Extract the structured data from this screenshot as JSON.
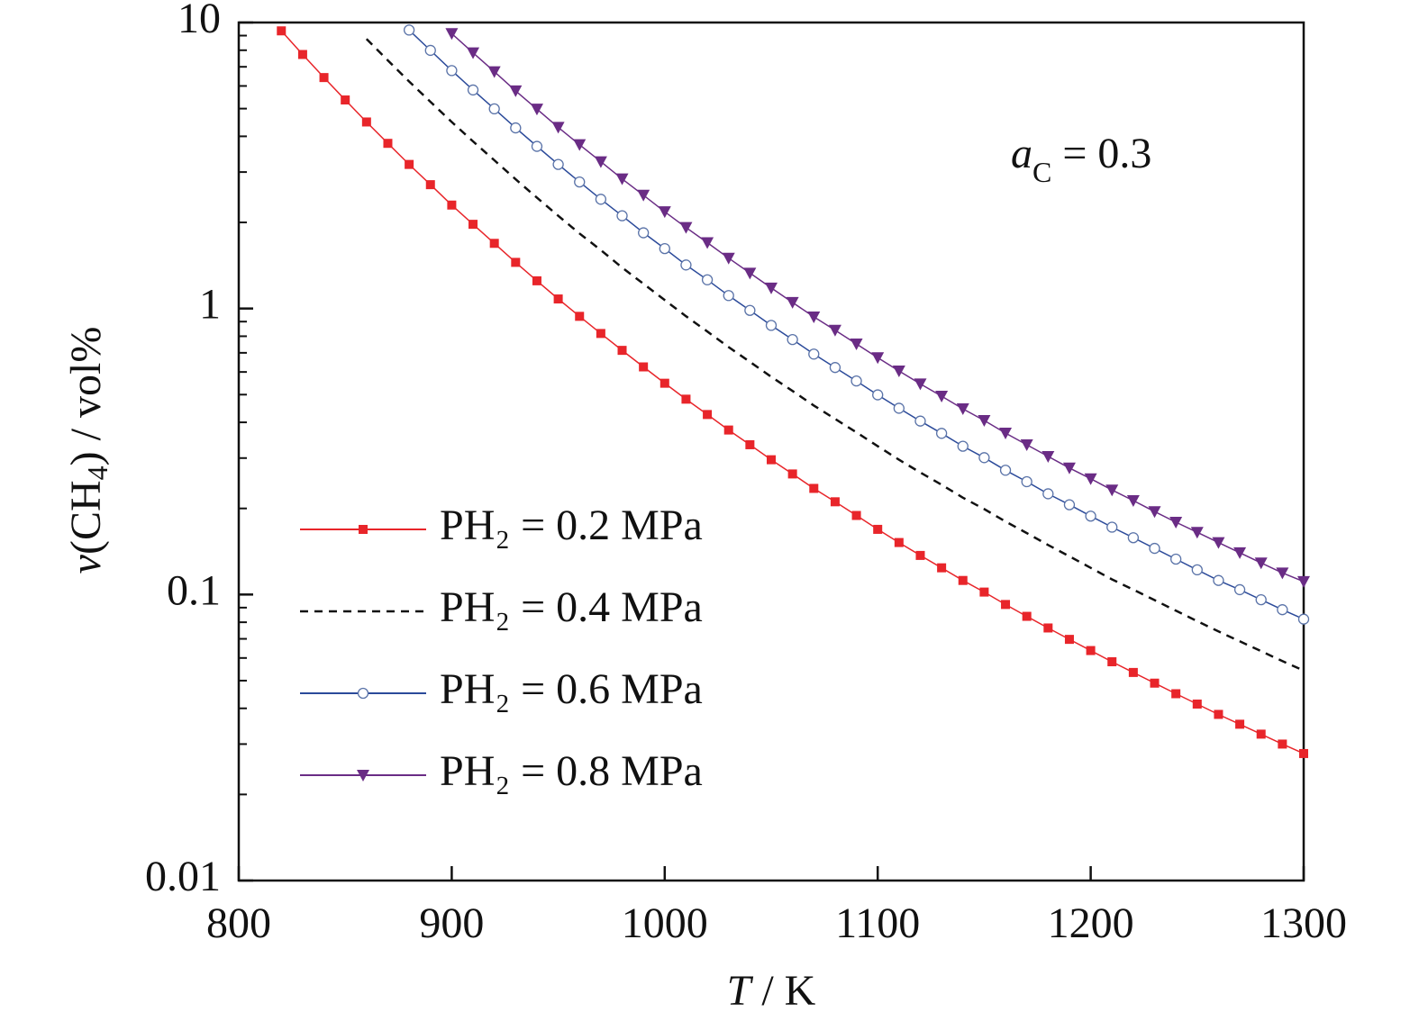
{
  "chart_data": {
    "type": "line",
    "xlabel": [
      "T",
      " / K"
    ],
    "ylabel": [
      "v",
      "(CH",
      "4",
      ") / vol%"
    ],
    "annotation": [
      "a",
      "C",
      " = 0.3"
    ],
    "log_y": true,
    "legend": "left",
    "xlim": [
      800,
      1300
    ],
    "xticks": [
      800,
      900,
      1000,
      1100,
      1200,
      1300
    ],
    "ylim": [
      0.01,
      10
    ],
    "yticks": [
      0.01,
      0.1,
      1,
      10
    ],
    "yminorticks": [
      0.02,
      0.03,
      0.04,
      0.05,
      0.06,
      0.07,
      0.08,
      0.09,
      0.2,
      0.3,
      0.4,
      0.5,
      0.6,
      0.7,
      0.8,
      0.9,
      2,
      3,
      4,
      5,
      6,
      7,
      8,
      9
    ],
    "x": [
      800,
      810,
      820,
      830,
      840,
      850,
      860,
      870,
      880,
      890,
      900,
      910,
      920,
      930,
      940,
      950,
      960,
      970,
      980,
      990,
      1000,
      1010,
      1020,
      1030,
      1040,
      1050,
      1060,
      1070,
      1080,
      1090,
      1100,
      1110,
      1120,
      1130,
      1140,
      1150,
      1160,
      1170,
      1180,
      1190,
      1200,
      1210,
      1220,
      1230,
      1240,
      1250,
      1260,
      1270,
      1280,
      1290,
      1300
    ],
    "series": [
      {
        "name": "PH₂ = 0.2 MPa",
        "color": "#e8252a",
        "marker": "square",
        "dashed": false,
        "values": [
          null,
          null,
          9.35,
          7.73,
          6.42,
          5.36,
          4.49,
          3.78,
          3.19,
          2.71,
          2.3,
          1.97,
          1.69,
          1.45,
          1.25,
          1.08,
          0.939,
          0.818,
          0.714,
          0.625,
          0.548,
          0.482,
          0.426,
          0.376,
          0.334,
          0.296,
          0.264,
          0.235,
          0.211,
          0.189,
          0.169,
          0.152,
          0.137,
          0.124,
          0.112,
          0.102,
          0.0923,
          0.0839,
          0.0764,
          0.0697,
          0.0637,
          0.0582,
          0.0534,
          0.049,
          0.045,
          0.0414,
          0.0381,
          0.0352,
          0.0325,
          0.03,
          0.0278
        ]
      },
      {
        "name": "PH₂ = 0.4 MPa",
        "color": "#111111",
        "marker": "none",
        "dashed": true,
        "values": [
          null,
          null,
          null,
          null,
          null,
          null,
          8.76,
          7.37,
          6.22,
          5.28,
          4.49,
          3.84,
          3.3,
          2.83,
          2.44,
          2.11,
          1.83,
          1.6,
          1.39,
          1.22,
          1.07,
          0.94,
          0.831,
          0.733,
          0.651,
          0.577,
          0.515,
          0.458,
          0.411,
          0.369,
          0.33,
          0.296,
          0.267,
          0.242,
          0.218,
          0.199,
          0.18,
          0.164,
          0.149,
          0.136,
          0.124,
          0.113,
          0.104,
          0.0956,
          0.0878,
          0.0807,
          0.0743,
          0.0686,
          0.0634,
          0.0585,
          0.0542
        ]
      },
      {
        "name": "PH₂ = 0.6 MPa",
        "color": "#2b4a9a",
        "marker": "circle",
        "dashed": false,
        "values": [
          null,
          null,
          null,
          null,
          null,
          null,
          null,
          null,
          9.41,
          7.99,
          6.79,
          5.81,
          4.99,
          4.28,
          3.69,
          3.19,
          2.77,
          2.41,
          2.11,
          1.84,
          1.62,
          1.42,
          1.26,
          1.11,
          0.985,
          0.873,
          0.779,
          0.693,
          0.622,
          0.558,
          0.499,
          0.448,
          0.404,
          0.366,
          0.33,
          0.301,
          0.272,
          0.248,
          0.225,
          0.206,
          0.188,
          0.172,
          0.158,
          0.145,
          0.133,
          0.122,
          0.112,
          0.104,
          0.0959,
          0.0885,
          0.082
        ]
      },
      {
        "name": "PH₂ = 0.8 MPa",
        "color": "#6a2c85",
        "marker": "triangle-down",
        "dashed": false,
        "values": [
          null,
          null,
          null,
          null,
          null,
          null,
          null,
          null,
          null,
          null,
          9.15,
          7.84,
          6.73,
          5.77,
          4.98,
          4.3,
          3.74,
          3.26,
          2.84,
          2.49,
          2.18,
          1.92,
          1.7,
          1.5,
          1.33,
          1.18,
          1.05,
          0.935,
          0.84,
          0.752,
          0.673,
          0.605,
          0.545,
          0.494,
          0.446,
          0.406,
          0.367,
          0.334,
          0.304,
          0.277,
          0.254,
          0.232,
          0.213,
          0.195,
          0.179,
          0.165,
          0.152,
          0.14,
          0.129,
          0.119,
          0.111
        ]
      }
    ]
  }
}
